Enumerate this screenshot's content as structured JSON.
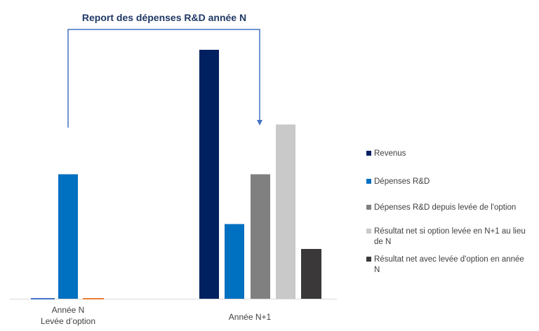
{
  "chart_data": {
    "type": "bar",
    "title": "",
    "xlabel": "",
    "ylabel": "",
    "ylim": [
      0,
      100
    ],
    "grid": false,
    "legend_position": "right",
    "annotation": {
      "text": "Report des dépenses R&D année N",
      "from": "Année N",
      "to": "Année N+1",
      "color": "#4472C4"
    },
    "groups": [
      {
        "category": [
          "Année N",
          "Levée d’option"
        ],
        "bars": [
          {
            "series": null,
            "value": 0,
            "color": "#4472C4"
          },
          {
            "series": "Dépenses R&D",
            "value": 50,
            "color": "#0070C0"
          },
          {
            "series": null,
            "value": 0,
            "color": "#ED7D31"
          }
        ]
      },
      {
        "category": [
          "Année N+1"
        ],
        "bars": [
          {
            "series": "Revenus",
            "value": 100,
            "color": "#002060"
          },
          {
            "series": "Dépenses R&D",
            "value": 30,
            "color": "#0070C0"
          },
          {
            "series": "Dépenses R&D depuis levée de l'option",
            "value": 50,
            "color": "#808080"
          },
          {
            "series": "Résultat net si option levée en N+1 au lieu de N",
            "value": 70,
            "color": "#C9C9C9"
          },
          {
            "series": "Résultat net avec levée d'option en année N",
            "value": 20,
            "color": "#3A3838"
          }
        ]
      }
    ],
    "legend": [
      {
        "label": [
          "Revenus"
        ],
        "color": "#002060"
      },
      {
        "label": [
          "Dépenses R&D"
        ],
        "color": "#0070C0"
      },
      {
        "label": [
          "Dépenses R&D depuis levée de l'option"
        ],
        "color": "#808080"
      },
      {
        "label": [
          "Résultat net si option levée en N+1 au lieu",
          "de N"
        ],
        "color": "#C9C9C9"
      },
      {
        "label": [
          "Résultat net avec levée d'option en année",
          "N"
        ],
        "color": "#3A3838"
      }
    ]
  }
}
